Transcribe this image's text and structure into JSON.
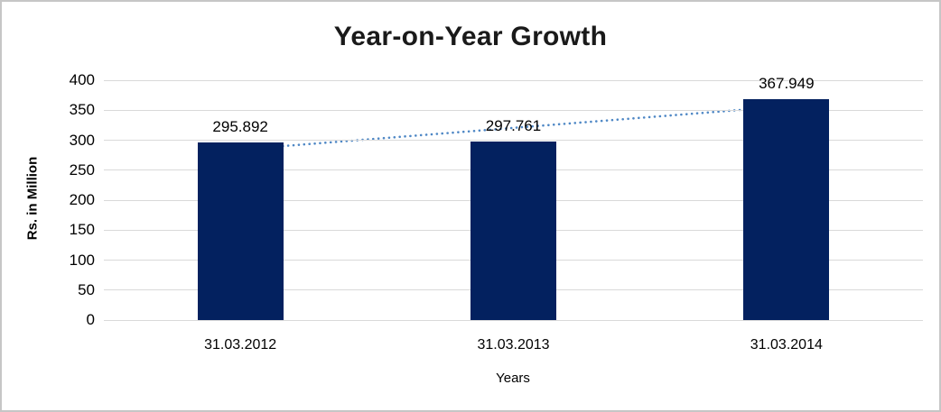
{
  "chart_data": {
    "type": "bar",
    "title": "Year-on-Year Growth",
    "xlabel": "Years",
    "ylabel": "Rs. in Million",
    "categories": [
      "31.03.2012",
      "31.03.2013",
      "31.03.2014"
    ],
    "values": [
      295.892,
      297.761,
      367.949
    ],
    "data_labels": [
      "295.892",
      "297.761",
      "367.949"
    ],
    "ylim": [
      0,
      400
    ],
    "ytick_step": 50,
    "ytick_labels": [
      "0",
      "50",
      "100",
      "150",
      "200",
      "250",
      "300",
      "350",
      "400"
    ],
    "grid": true,
    "legend": "none",
    "bar_color": "#03215f",
    "gridline_color": "#d9d9d9",
    "trendline": {
      "type": "linear",
      "style": "dotted",
      "color": "#4e87c5"
    }
  }
}
